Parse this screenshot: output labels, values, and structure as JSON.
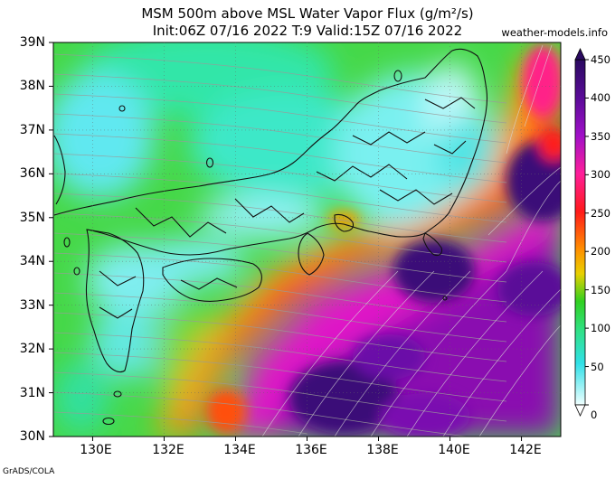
{
  "title": "MSM 500m above MSL Water Vapor Flux (g/m²/s)",
  "subtitle": "Init:06Z 07/16 2022  T:9 Valid:15Z 07/16 2022",
  "credit": "weather-models.info",
  "footer": "GrADS/COLA",
  "map": {
    "lat_labels": [
      "39N",
      "38N",
      "37N",
      "36N",
      "35N",
      "34N",
      "33N",
      "32N",
      "31N",
      "30N"
    ],
    "lon_labels": [
      "130E",
      "132E",
      "134E",
      "136E",
      "138E",
      "140E",
      "142E"
    ],
    "lat_range": [
      30,
      39
    ],
    "lon_range": [
      128.9,
      143.1
    ]
  },
  "colorbar": {
    "labels": [
      "450",
      "400",
      "350",
      "300",
      "250",
      "200",
      "150",
      "100",
      "50",
      "0"
    ],
    "colors": [
      "#3a1078",
      "#7a0ca8",
      "#d21cd2",
      "#ff1a8a",
      "#ff1a1a",
      "#ff8c00",
      "#f0d000",
      "#52d020",
      "#30e0a0",
      "#30e8e8",
      "#c8fcff"
    ]
  }
}
